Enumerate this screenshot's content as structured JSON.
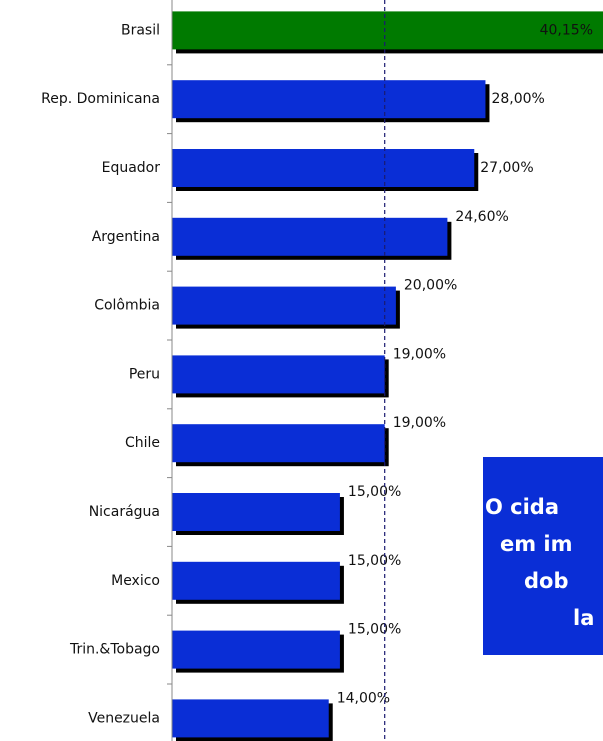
{
  "chart_data": {
    "type": "barh",
    "categories": [
      "Brasil",
      "Rep. Dominicana",
      "Equador",
      "Argentina",
      "Colômbia",
      "Peru",
      "Chile",
      "Nicarágua",
      "Mexico",
      "Trin.&Tobago",
      "Venezuela"
    ],
    "values": [
      40.15,
      28,
      27,
      24.6,
      20,
      19,
      19,
      15,
      15,
      15,
      14
    ],
    "value_labels": [
      "40,15%",
      "28,00%",
      "27,00%",
      "24,60%",
      "20,00%",
      "19,00%",
      "19,00%",
      "15,00%",
      "15,00%",
      "15,00%",
      "14,00%"
    ],
    "colors": [
      "#007a00",
      "#0a2ed6",
      "#0a2ed6",
      "#0a2ed6",
      "#0a2ed6",
      "#0a2ed6",
      "#0a2ed6",
      "#0a2ed6",
      "#0a2ed6",
      "#0a2ed6",
      "#0a2ed6"
    ],
    "xlim": [
      0,
      38.5
    ],
    "reference_line": 19,
    "annotation": {
      "lines": [
        "O cida",
        "em im",
        "dob",
        "la"
      ],
      "color": "#0a2ed6"
    }
  }
}
